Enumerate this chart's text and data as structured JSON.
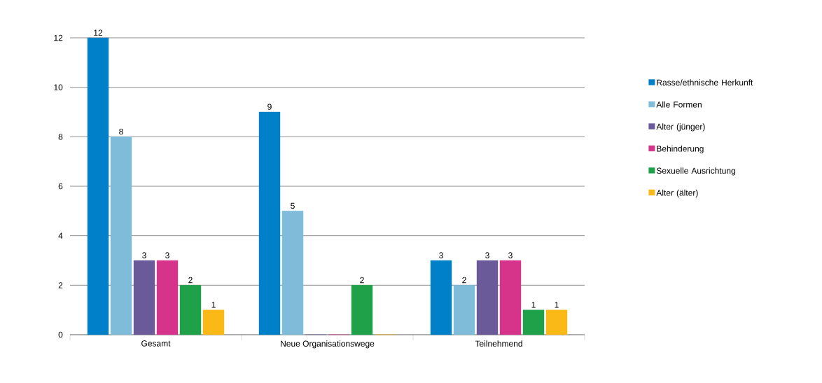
{
  "chart_data": {
    "type": "bar",
    "categories": [
      "Gesamt",
      "Neue Organisationswege",
      "Teilnehmend"
    ],
    "series": [
      {
        "name": "Rasse/ethnische Herkunft",
        "color": "#0080c8",
        "values": [
          12,
          9,
          3
        ],
        "value_labels": [
          "12",
          "9",
          "3"
        ]
      },
      {
        "name": "Alle Formen",
        "color": "#7fbcd9",
        "values": [
          8,
          5,
          2
        ],
        "value_labels": [
          "8",
          "5",
          "2"
        ]
      },
      {
        "name": "Alter (jünger)",
        "color": "#6b5a9a",
        "values": [
          3,
          0,
          3
        ],
        "value_labels": [
          "3",
          null,
          "3"
        ]
      },
      {
        "name": "Behinderung",
        "color": "#d6338a",
        "values": [
          3,
          0,
          3
        ],
        "value_labels": [
          "3",
          null,
          "3"
        ]
      },
      {
        "name": "Sexuelle Ausrichtung",
        "color": "#1fa14a",
        "values": [
          2,
          2,
          1
        ],
        "value_labels": [
          "2",
          "2",
          "1"
        ]
      },
      {
        "name": "Alter (älter)",
        "color": "#fbb917",
        "values": [
          1,
          0,
          1
        ],
        "value_labels": [
          "1",
          null,
          "1"
        ]
      }
    ],
    "ylim": [
      0,
      12
    ],
    "yticks": [
      0,
      2,
      4,
      6,
      8,
      10,
      12
    ],
    "grid": "y",
    "legend": "right"
  }
}
